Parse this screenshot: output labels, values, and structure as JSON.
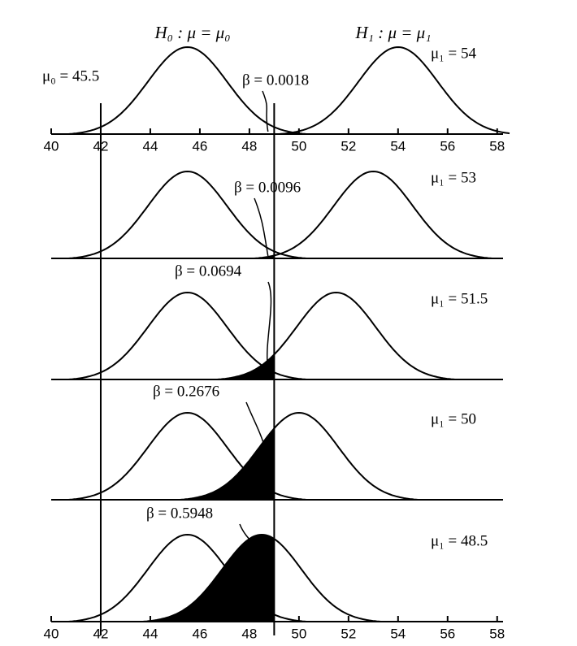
{
  "chart_data": {
    "type": "normal-curves",
    "h0_label": "H₀ : μ = μ₀",
    "h1_label": "H₁ : μ = μ₁",
    "mu0": 45.5,
    "mu0_label": "μ₀ = 45.5",
    "reference_lines": [
      42,
      49
    ],
    "xlim": [
      40,
      58.5
    ],
    "xticks": [
      40,
      42,
      44,
      46,
      48,
      50,
      52,
      54,
      56,
      58
    ],
    "panels": [
      {
        "mu1": 54,
        "mu1_label": "μ₁ = 54",
        "beta": 0.0018,
        "beta_label": "β = 0.0018"
      },
      {
        "mu1": 53,
        "mu1_label": "μ₁ = 53",
        "beta": 0.0096,
        "beta_label": "β = 0.0096"
      },
      {
        "mu1": 51.5,
        "mu1_label": "μ₁ = 51.5",
        "beta": 0.0694,
        "beta_label": "β = 0.0694"
      },
      {
        "mu1": 50,
        "mu1_label": "μ₁ = 50",
        "beta": 0.2676,
        "beta_label": "β = 0.2676"
      },
      {
        "mu1": 48.5,
        "mu1_label": "μ₁ = 48.5",
        "beta": 0.5948,
        "beta_label": "β = 0.5948"
      }
    ]
  }
}
